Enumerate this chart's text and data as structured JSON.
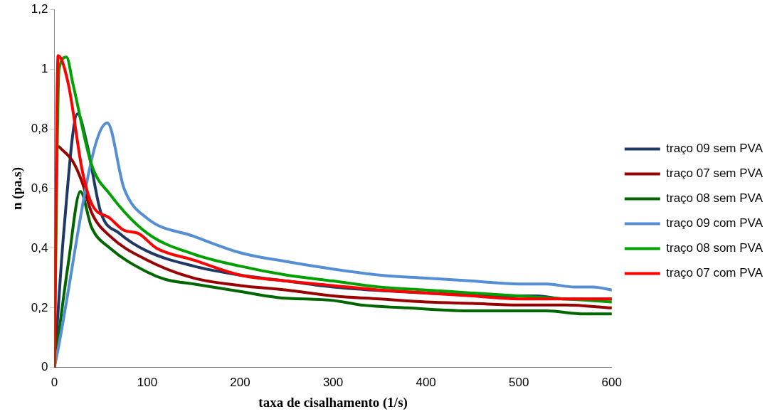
{
  "chart_data": {
    "type": "line",
    "xlabel": "taxa de cisalhamento (1/s)",
    "ylabel": "n (pa.s)",
    "xlim": [
      0,
      600
    ],
    "ylim": [
      0,
      1.2
    ],
    "xticks": [
      0,
      100,
      200,
      300,
      400,
      500,
      600
    ],
    "yticks": [
      0,
      {
        "value": 0.2,
        "label": "0,2"
      },
      {
        "value": 0.4,
        "label": "0,4"
      },
      {
        "value": 0.6,
        "label": "0,6"
      },
      {
        "value": 0.8,
        "label": "0,8"
      },
      1,
      {
        "value": 1.2,
        "label": "1,2"
      }
    ],
    "grid": false,
    "legend": "right",
    "marker": "none",
    "line_style": "solid",
    "series": [
      {
        "name": "traço 09 sem PVA",
        "color": "#1f3864",
        "x": [
          0,
          10,
          25,
          35,
          50,
          70,
          100,
          150,
          200,
          250,
          300,
          400,
          500,
          520,
          550,
          600
        ],
        "values": [
          0,
          0.45,
          0.85,
          0.75,
          0.52,
          0.45,
          0.39,
          0.34,
          0.31,
          0.29,
          0.27,
          0.25,
          0.24,
          0.24,
          0.23,
          0.23
        ]
      },
      {
        "name": "traço 07 sem PVA",
        "color": "#990000",
        "x": [
          5,
          20,
          30,
          40,
          60,
          100,
          150,
          200,
          250,
          300,
          350,
          400,
          450,
          500,
          550,
          600
        ],
        "values": [
          0.74,
          0.69,
          0.62,
          0.52,
          0.44,
          0.36,
          0.3,
          0.275,
          0.26,
          0.24,
          0.23,
          0.22,
          0.215,
          0.21,
          0.21,
          0.2
        ]
      },
      {
        "name": "traço 08 sem PVA",
        "color": "#006600",
        "x": [
          0,
          15,
          28,
          40,
          60,
          100,
          120,
          150,
          200,
          240,
          300,
          330,
          380,
          450,
          530,
          570,
          600
        ],
        "values": [
          0,
          0.35,
          0.59,
          0.47,
          0.4,
          0.32,
          0.295,
          0.28,
          0.255,
          0.235,
          0.225,
          0.21,
          0.2,
          0.19,
          0.19,
          0.18,
          0.18
        ]
      },
      {
        "name": "traço 09 com PVA",
        "color": "#558ed5",
        "x": [
          0,
          57,
          75,
          100,
          150,
          200,
          250,
          300,
          350,
          400,
          450,
          500,
          530,
          560,
          580,
          600
        ],
        "values": [
          0,
          0.82,
          0.6,
          0.5,
          0.44,
          0.385,
          0.355,
          0.33,
          0.31,
          0.3,
          0.29,
          0.28,
          0.28,
          0.27,
          0.27,
          0.26
        ]
      },
      {
        "name": "traço 08 som PVA",
        "color": "#00a000",
        "x": [
          0,
          5,
          13,
          20,
          40,
          60,
          100,
          150,
          200,
          250,
          300,
          350,
          400,
          450,
          500,
          550,
          600
        ],
        "values": [
          0,
          1,
          1.04,
          0.95,
          0.68,
          0.58,
          0.45,
          0.38,
          0.34,
          0.31,
          0.29,
          0.27,
          0.26,
          0.25,
          0.24,
          0.23,
          0.22
        ]
      },
      {
        "name": "traço 07 com PVA",
        "color": "#ff0000",
        "x": [
          0,
          4,
          15,
          30,
          40,
          60,
          75,
          90,
          110,
          150,
          200,
          250,
          300,
          350,
          400,
          450,
          500,
          600
        ],
        "values": [
          0,
          1.045,
          0.95,
          0.66,
          0.55,
          0.5,
          0.46,
          0.45,
          0.4,
          0.36,
          0.31,
          0.29,
          0.275,
          0.26,
          0.25,
          0.24,
          0.23,
          0.23
        ]
      }
    ]
  }
}
